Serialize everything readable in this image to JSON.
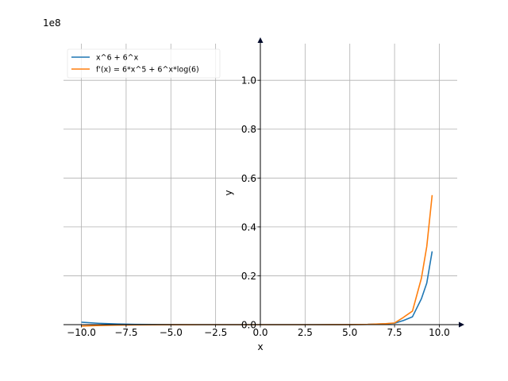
{
  "chart_data": {
    "type": "line",
    "xlabel": "x",
    "ylabel": "y",
    "offset_text": "1e8",
    "xlim": [
      -11,
      11
    ],
    "ylim": [
      0,
      1.15
    ],
    "x_ticks": [
      -10.0,
      -7.5,
      -5.0,
      -2.5,
      0.0,
      2.5,
      5.0,
      7.5,
      10.0
    ],
    "x_tick_labels": [
      "−10.0",
      "−7.5",
      "−5.0",
      "−2.5",
      "0.0",
      "2.5",
      "5.0",
      "7.5",
      "10.0"
    ],
    "y_ticks": [
      0.0,
      0.2,
      0.4,
      0.6,
      0.8,
      1.0
    ],
    "y_tick_labels": [
      "0.0",
      "0.2",
      "0.4",
      "0.6",
      "0.8",
      "1.0"
    ],
    "grid": true,
    "legend_position": "top-left",
    "series": [
      {
        "name": "x^6 + 6^x",
        "color": "#1f77b4",
        "x": [
          -10,
          -9,
          -8,
          -7,
          -6,
          -5,
          -4,
          -3,
          -2,
          -1,
          0,
          1,
          2,
          3,
          4,
          5,
          6,
          7,
          7.5,
          8,
          8.5,
          9,
          9.3,
          9.6
        ],
        "y": [
          0.01,
          0.00531,
          0.00262,
          0.00118,
          0.000467,
          0.000156,
          4.1e-05,
          7.3e-06,
          6e-07,
          2e-08,
          1e-08,
          7e-08,
          1e-06,
          9.4e-06,
          5.66e-05,
          0.000234,
          0.000933,
          0.00362,
          0.00591,
          0.01706,
          0.03224,
          0.10609,
          0.17,
          0.3
        ]
      },
      {
        "name": "f'(x) = 6*x^5 + 6^x*log(6)",
        "color": "#ff7f0e",
        "x": [
          -10,
          -9,
          -8,
          -7,
          -6,
          -5,
          -4,
          -3,
          -2,
          -1,
          0,
          1,
          2,
          3,
          4,
          5,
          6,
          7,
          7.5,
          8,
          8.5,
          9,
          9.3,
          9.6
        ],
        "y": [
          -0.006,
          -0.00354,
          -0.00197,
          -0.00101,
          -0.000467,
          -0.000188,
          -6.14e-05,
          -1.46e-05,
          -1.9e-06,
          -6e-08,
          2e-08,
          1.7e-07,
          2.5e-06,
          2.06e-05,
          9.03e-05,
          0.000327,
          0.000975,
          0.00372,
          0.00688,
          0.02995,
          0.05536,
          0.19003,
          0.32,
          0.53
        ]
      }
    ]
  }
}
